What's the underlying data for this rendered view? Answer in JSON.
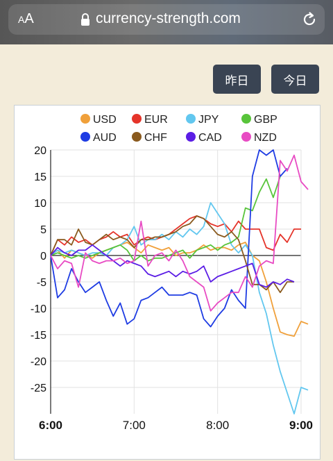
{
  "browser": {
    "aa_small": "A",
    "aa_large": "A",
    "url": "currency-strength.com"
  },
  "buttons": {
    "yesterday": "昨日",
    "today": "今日"
  },
  "chart_data": {
    "type": "line",
    "ylim": [
      -30,
      20
    ],
    "yticks": [
      20,
      15,
      10,
      5,
      0,
      -5,
      -10,
      -15,
      -20,
      -25
    ],
    "xlim": [
      0,
      36
    ],
    "xticks": [
      {
        "v": 0,
        "label": "6:00",
        "bold": true
      },
      {
        "v": 12,
        "label": "7:00",
        "bold": false
      },
      {
        "v": 24,
        "label": "8:00",
        "bold": false
      },
      {
        "v": 36,
        "label": "9:00",
        "bold": true
      }
    ],
    "grid": true,
    "legend_position": "top",
    "series": [
      {
        "name": "USD",
        "color": "#f0a03a",
        "values": [
          0,
          1,
          -0.5,
          1,
          0.5,
          0,
          -0.5,
          0.5,
          1,
          1.5,
          2,
          2.5,
          1.5,
          0.5,
          2,
          1.5,
          1,
          1.5,
          0,
          0.5,
          0.5,
          1,
          2,
          1,
          1.5,
          1.5,
          1,
          2,
          2.5,
          0,
          -1,
          -5,
          -10,
          -14.5,
          -15,
          -15.3,
          -12.5,
          -13
        ]
      },
      {
        "name": "EUR",
        "color": "#e5342a",
        "values": [
          0,
          3,
          2,
          3.5,
          2.5,
          3,
          2,
          3,
          3.5,
          4.5,
          3.5,
          4,
          2,
          3,
          3.5,
          3,
          3.5,
          4,
          5,
          6,
          7,
          7.5,
          7,
          6,
          5.5,
          6,
          4.5,
          6.5,
          5,
          5,
          5,
          1.5,
          1,
          4,
          2.5,
          5,
          5
        ]
      },
      {
        "name": "JPY",
        "color": "#62c7ef",
        "values": [
          0,
          1,
          0.5,
          1,
          0.5,
          0,
          0.5,
          0.5,
          0,
          1.5,
          2,
          3,
          5.5,
          2,
          3,
          3,
          4,
          3,
          4.5,
          3.5,
          5,
          4,
          5.5,
          10,
          8,
          6,
          2,
          0.5,
          2,
          0,
          -7,
          -11,
          -17,
          -22,
          -26,
          -30,
          -25,
          -25.5
        ]
      },
      {
        "name": "GBP",
        "color": "#58c43a",
        "values": [
          0,
          0.5,
          0,
          -0.5,
          0,
          -0.5,
          0,
          0.5,
          1,
          1.5,
          2,
          1,
          -1,
          0,
          -1,
          -0.5,
          -0.5,
          0,
          0.5,
          1,
          -0.5,
          1,
          1.5,
          2,
          1,
          2,
          2.5,
          3.5,
          9,
          8.5,
          12,
          14.5,
          11,
          15
        ]
      },
      {
        "name": "AUD",
        "color": "#1e3ce3",
        "values": [
          0,
          -8,
          -6.5,
          -2.5,
          -5,
          -7,
          -6,
          -5,
          -8.5,
          -11.5,
          -9,
          -13,
          -12,
          -8.5,
          -8,
          -7,
          -6,
          -7.5,
          -7.5,
          -7.5,
          -7,
          -7.5,
          -12,
          -13.5,
          -11.5,
          -10,
          -6.5,
          -8.5,
          -10,
          15,
          20,
          19,
          20,
          15,
          16.5
        ]
      },
      {
        "name": "CHF",
        "color": "#8a5a1e",
        "values": [
          0,
          3,
          3,
          2,
          5,
          2.5,
          2,
          3,
          4,
          3,
          3.5,
          3,
          1.5,
          3,
          3,
          3.5,
          3.5,
          4,
          4.5,
          5.5,
          6,
          7.5,
          7,
          5.5,
          4,
          3.5,
          4.5,
          3,
          -1,
          -5.5,
          -5.5,
          -6.5,
          -5,
          -7,
          -5,
          -5
        ]
      },
      {
        "name": "CAD",
        "color": "#5b1de5",
        "values": [
          0,
          1.5,
          0.5,
          0,
          1,
          1,
          2,
          1,
          0,
          -1,
          -2,
          -1,
          -1.5,
          -2,
          -3.5,
          -4,
          -3.5,
          -3,
          -4,
          -3,
          -3.5,
          -3,
          -2,
          -5,
          -4,
          -3.5,
          -3,
          -2.5,
          -2,
          -1.5,
          -5.5,
          -6,
          -5,
          -5.5,
          -4.5,
          -5
        ]
      },
      {
        "name": "NZD",
        "color": "#e84bc3",
        "values": [
          0,
          -2.5,
          -1,
          -1.5,
          -6,
          0.5,
          -1,
          -1.5,
          -1,
          -1,
          -0.5,
          -1.5,
          -1,
          6.5,
          -2,
          0,
          0.5,
          -1,
          1,
          -1,
          -4,
          -5,
          -6,
          -10.5,
          -9,
          -8,
          -7,
          -7,
          -4,
          -6,
          -2,
          -1,
          -1.5,
          18,
          16,
          19,
          14,
          12.5
        ]
      }
    ]
  }
}
